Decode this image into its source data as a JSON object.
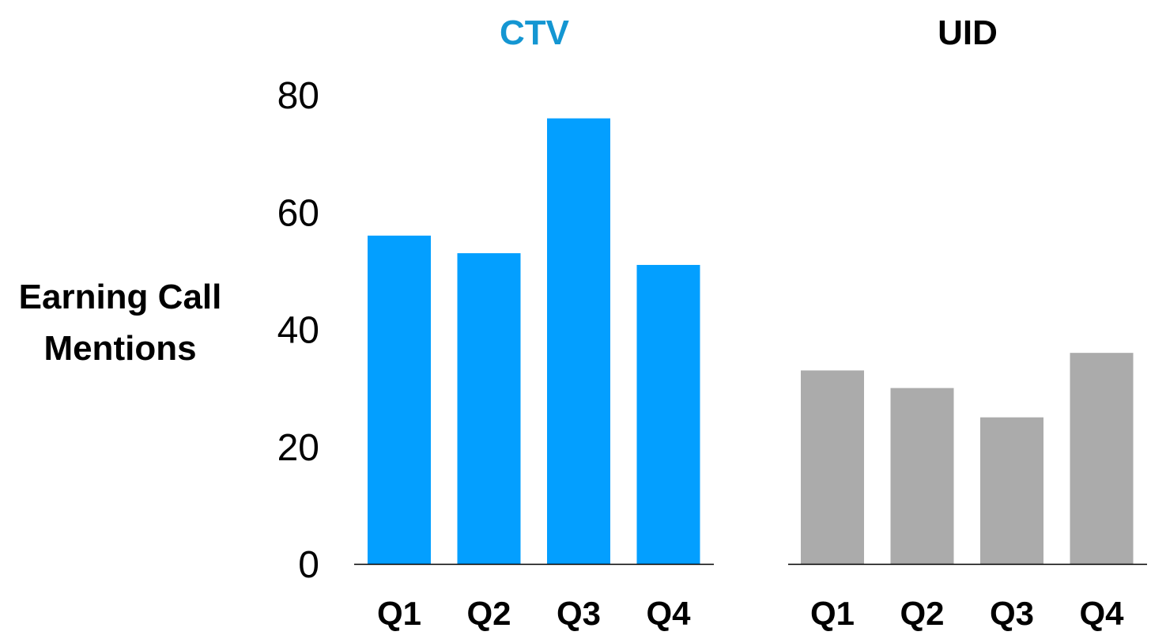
{
  "chart_data": {
    "type": "bar",
    "ylabel": "Earning Call Mentions",
    "ylabel_lines": [
      "Earning Call",
      "Mentions"
    ],
    "ylim": [
      0,
      80
    ],
    "yticks": [
      "0",
      "20",
      "40",
      "60",
      "80"
    ],
    "grid": false,
    "legend": "none",
    "categories": [
      "Q1",
      "Q2",
      "Q3",
      "Q4"
    ],
    "panels": [
      {
        "title": "CTV",
        "title_color": "#1496D2",
        "bar_color": "#039FFF",
        "values": [
          56,
          53,
          76,
          51
        ]
      },
      {
        "title": "UID",
        "title_color": "#000000",
        "bar_color": "#ABABAB",
        "values": [
          33,
          30,
          25,
          36
        ]
      }
    ]
  }
}
